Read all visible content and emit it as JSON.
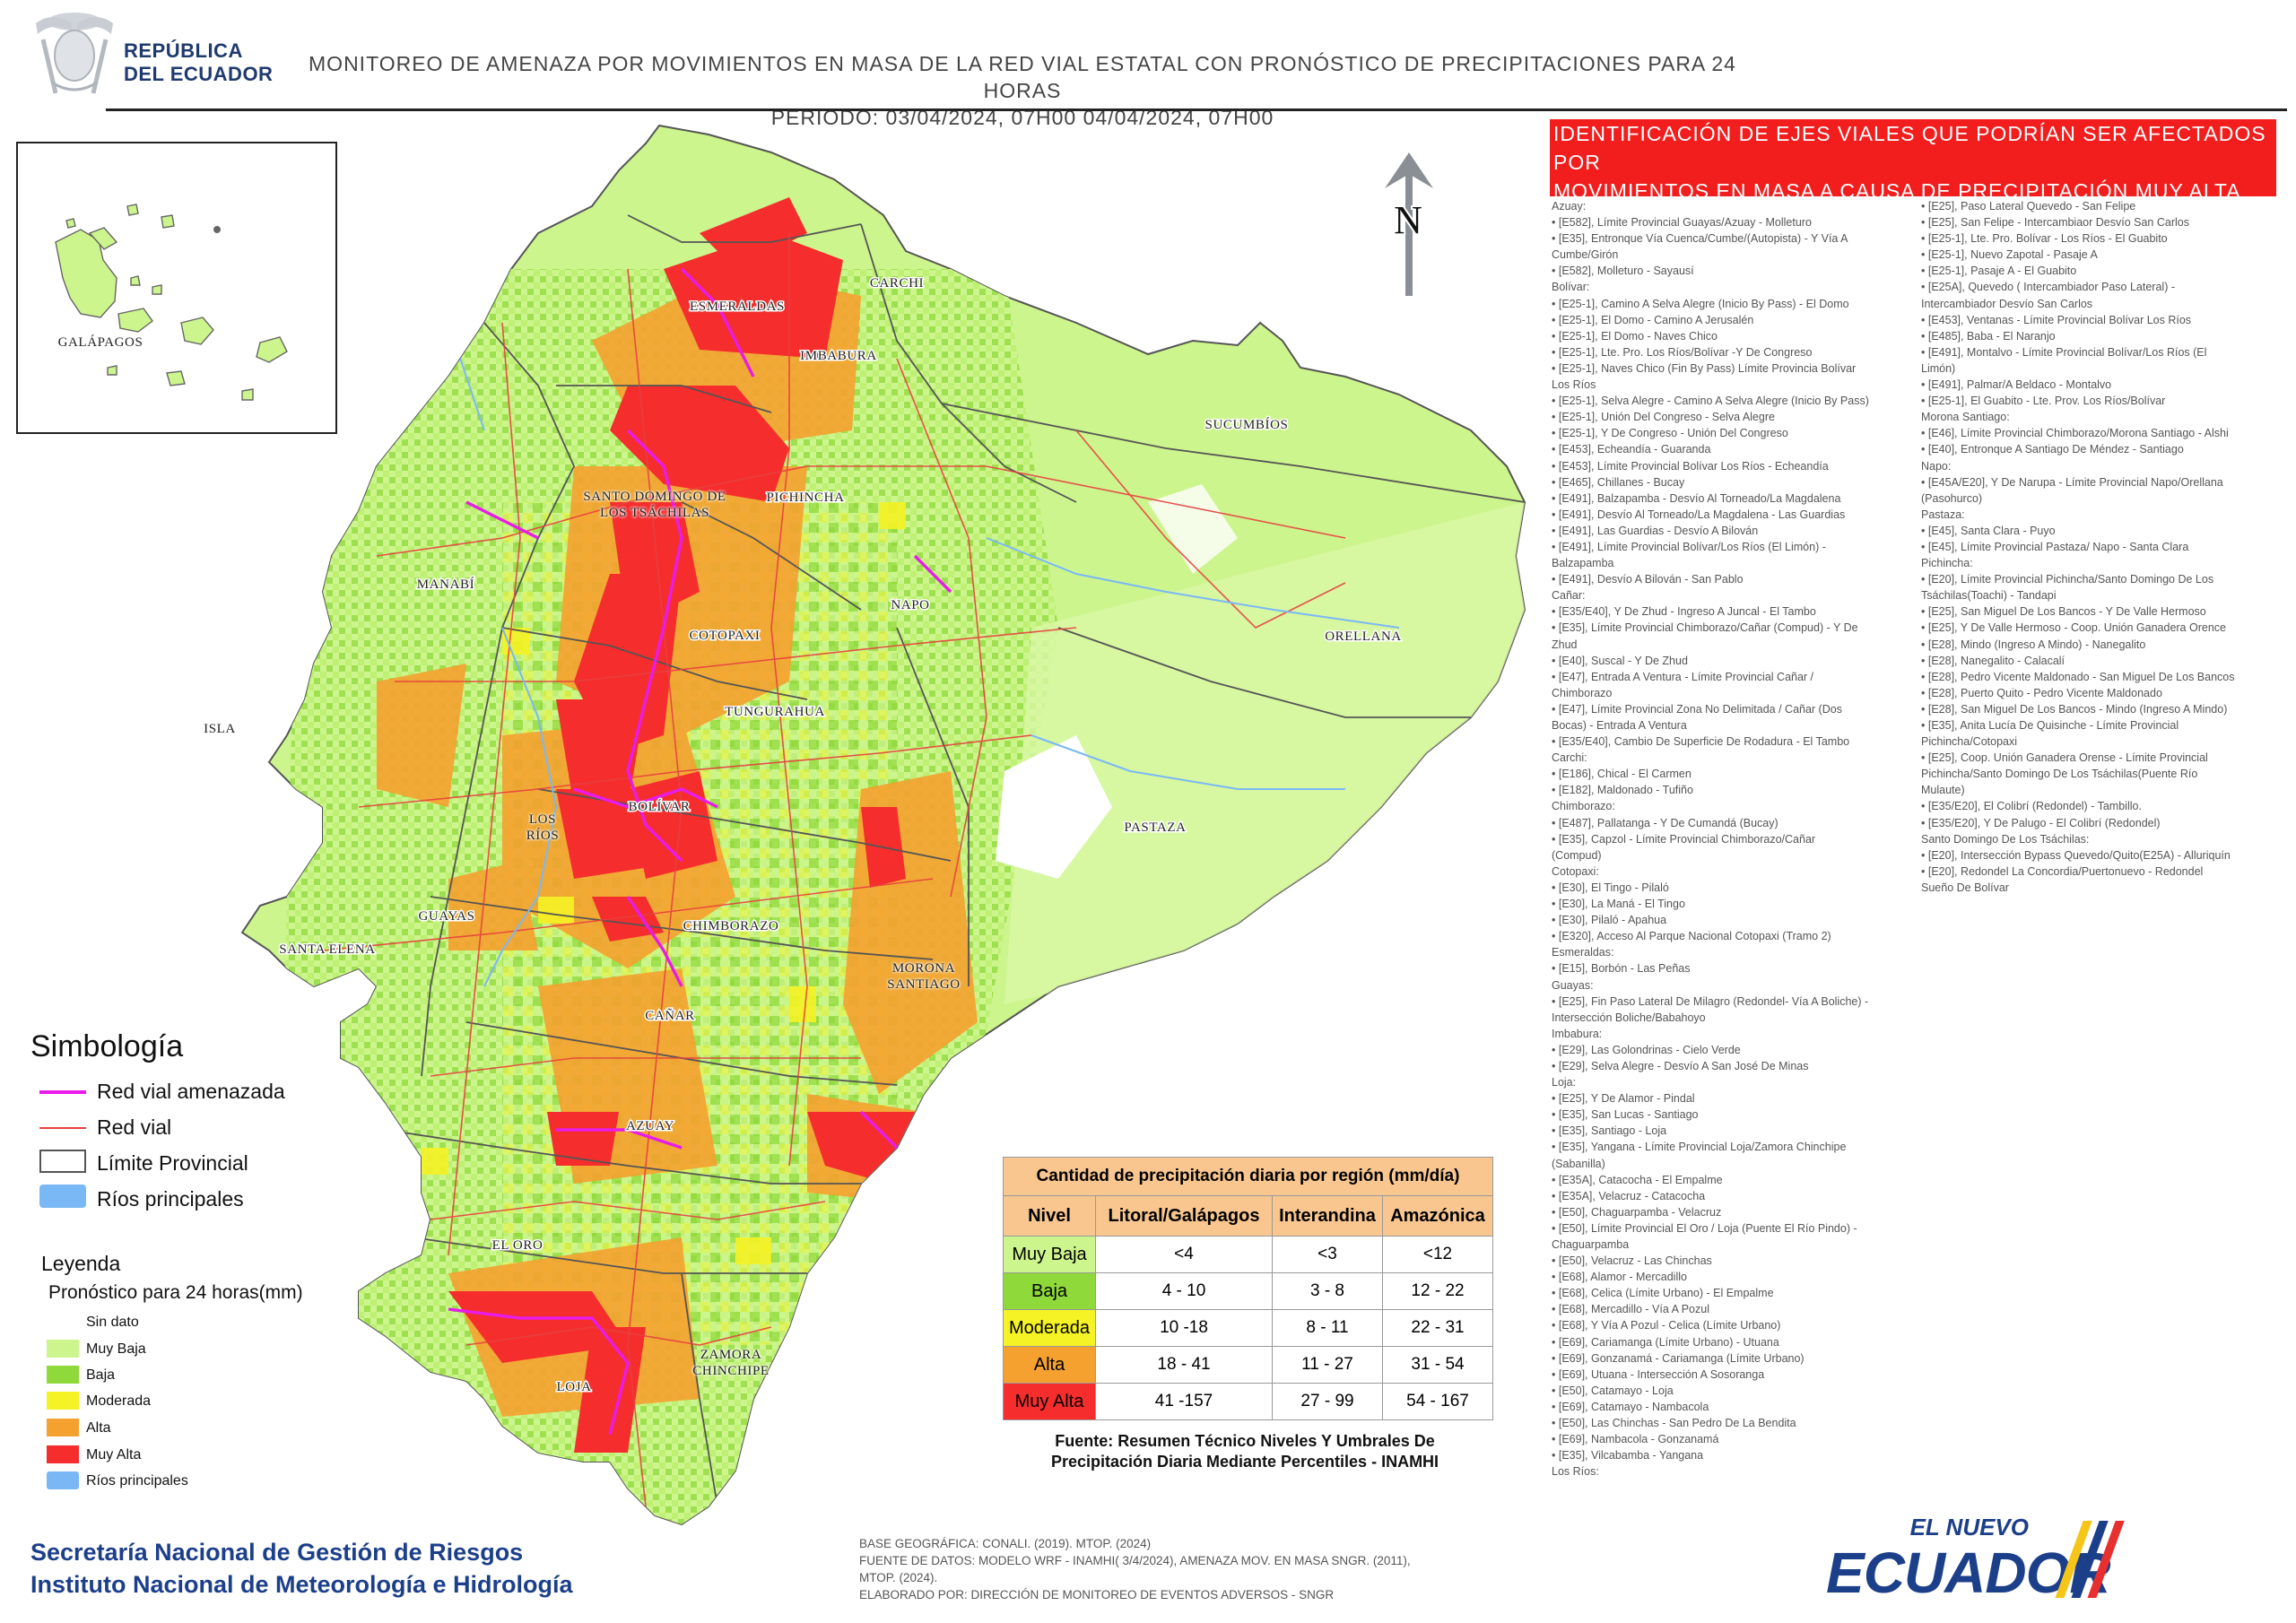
{
  "header": {
    "country_line1": "REPÚBLICA",
    "country_line2": "DEL ECUADOR",
    "title_line1": "MONITOREO DE AMENAZA POR MOVIMIENTOS EN MASA DE LA RED VIAL  ESTATAL  CON PRONÓSTICO  DE  PRECIPITACIONES PARA 24 HORAS",
    "title_line2": "PERIODO: 03/04/2024, 07H00 04/04/2024, 07H00"
  },
  "colors": {
    "muy_baja": "#cdf58d",
    "baja": "#8fd93a",
    "moderada": "#f5f225",
    "alta": "#f5a12f",
    "muy_alta": "#f52d2d",
    "rios": "#7ab8f5",
    "red_vial_amenazada": "#e81ce8",
    "red_vial": "#e84040",
    "header_box": "#f21d1d",
    "footer_blue": "#1c3f8a",
    "table_header": "#f8c68e"
  },
  "map": {
    "inset_label": "GALÁPAGOS",
    "north_label": "N",
    "province_labels": [
      "CARCHI",
      "ESMERALDAS",
      "IMBABURA",
      "SUCUMBÍOS",
      "SANTO DOMINGO DE LOS TSÁCHILAS",
      "PICHINCHA",
      "MANABÍ",
      "NAPO",
      "ORELLANA",
      "COTOPAXI",
      "TUNGURAHUA",
      "ISLA",
      "BOLÍVAR",
      "LOS RÍOS",
      "PASTAZA",
      "GUAYAS",
      "SANTA ELENA",
      "CHIMBORAZO",
      "MORONA SANTIAGO",
      "CAÑAR",
      "AZUAY",
      "EL ORO",
      "ZAMORA CHINCHIPE",
      "LOJA"
    ]
  },
  "road_list": {
    "title_line1": "IDENTIFICACIÓN DE EJES VIALES QUE PODRÍAN SER AFECTADOS POR",
    "title_line2": "MOVIMIENTOS EN MASA A CAUSA DE PRECIPITACIÓN MUY ALTA",
    "left_column": [
      "Azuay:",
      "• [E582], Límite Provincial Guayas/Azuay - Molleturo",
      "• [E35], Entronque Vía Cuenca/Cumbe/(Autopista) - Y Vía A",
      "Cumbe/Girón",
      "• [E582], Molleturo - Sayausí",
      "Bolívar:",
      "• [E25-1], Camino A Selva Alegre (Inicio By Pass) -  El Domo",
      "• [E25-1], El Domo - Camino A Jerusalén",
      "• [E25-1], El Domo - Naves Chico",
      "• [E25-1], Lte. Pro. Los Ríos/Bolívar -Y De Congreso",
      "• [E25-1], Naves Chico (Fin By Pass) Límite Provincia Bolívar",
      "Los Ríos",
      "• [E25-1], Selva Alegre - Camino A Selva Alegre (Inicio By Pass)",
      "• [E25-1], Unión Del Congreso - Selva  Alegre",
      "• [E25-1], Y De Congreso - Unión Del Congreso",
      "• [E453], Echeandía - Guaranda",
      "• [E453], Límite Provincial Bolívar Los Ríos - Echeandía",
      "• [E465], Chillanes - Bucay",
      "• [E491], Balzapamba - Desvío Al Torneado/La Magdalena",
      "• [E491], Desvío Al Torneado/La Magdalena - Las Guardias",
      "• [E491], Las Guardias - Desvío A Bilován",
      "• [E491], Límite Provincial Bolívar/Los Ríos (El Limón) -",
      "Balzapamba",
      "• [E491], Desvío A Bilován - San Pablo",
      "Cañar:",
      "• [E35/E40], Y De Zhud - Ingreso A Juncal - El Tambo",
      "• [E35], Límite Provincial Chimborazo/Cañar (Compud) - Y De",
      "Zhud",
      "• [E40], Suscal - Y De Zhud",
      "• [E47], Entrada A Ventura -  Límite Provincial Cañar /",
      "Chimborazo",
      "• [E47], Límite Provincial Zona No Delimitada / Cañar (Dos",
      "Bocas) - Entrada  A Ventura",
      "• [E35/E40], Cambio De Superficie De Rodadura - El Tambo",
      "Carchi:",
      "• [E186], Chical - El Carmen",
      "• [E182], Maldonado - Tufiño",
      "Chimborazo:",
      "• [E487], Pallatanga - Y De Cumandá (Bucay)",
      "• [E35], Capzol - Límite Provincial Chimborazo/Cañar",
      "(Compud)",
      "Cotopaxi:",
      "• [E30], El Tingo - Pilaló",
      "• [E30], La Maná - El Tingo",
      "• [E30], Pilaló - Apahua",
      "• [E320], Acceso Al Parque Nacional Cotopaxi (Tramo 2)",
      "Esmeraldas:",
      "• [E15], Borbón - Las Peñas",
      "Guayas:",
      "• [E25], Fin Paso Lateral De Milagro (Redondel- Vía A Boliche) -",
      "Intersección Boliche/Babahoyo",
      "Imbabura:",
      "• [E29], Las Golondrinas - Cielo Verde",
      "• [E29], Selva  Alegre - Desvío  A San José De Minas",
      "Loja:",
      "• [E25], Y De Alamor - Pindal",
      "• [E35], San Lucas - Santiago",
      "• [E35], Santiago - Loja",
      "• [E35], Yangana - Límite Provincial Loja/Zamora Chinchipe",
      "(Sabanilla)",
      "• [E35A], Catacocha - El Empalme",
      "• [E35A], Velacruz - Catacocha",
      "• [E50], Chaguarpamba - Velacruz",
      "• [E50], Límite Provincial El Oro / Loja (Puente El Río Pindo) -",
      "Chaguarpamba",
      "• [E50], Velacruz - Las Chinchas",
      "• [E68], Alamor - Mercadillo",
      "• [E68], Celica (Límite Urbano) - El Empalme",
      "• [E68], Mercadillo - Vía  A Pozul",
      "• [E68], Y Vía A Pozul - Celica (Límite Urbano)",
      "• [E69], Cariamanga (Límite Urbano) - Utuana",
      "• [E69], Gonzanamá - Cariamanga (Límite Urbano)",
      "• [E69], Utuana - Intersección A Sosoranga",
      "• [E50], Catamayo - Loja",
      "• [E69], Catamayo - Nambacola",
      "• [E50], Las Chinchas - San Pedro De La Bendita",
      "• [E69], Nambacola - Gonzanamá",
      "• [E35], Vilcabamba - Yangana",
      "Los Ríos:"
    ],
    "right_column": [
      "• [E25], Paso Lateral Quevedo - San Felipe",
      "• [E25], San Felipe  - Intercambiaor Desvío  San Carlos",
      "• [E25-1], Lte. Pro. Bolívar - Los Ríos - El Guabito",
      "• [E25-1], Nuevo Zapotal - Pasaje A",
      "• [E25-1], Pasaje A - El Guabito",
      "• [E25A], Quevedo ( Intercambiador Paso Lateral) -",
      "Intercambiador Desvío  San Carlos",
      "• [E453], Ventanas - Límite Provincial Bolívar Los Ríos",
      "• [E485], Baba - El Naranjo",
      "• [E491], Montalvo - Límite Provincial Bolívar/Los Ríos (El",
      "Limón)",
      "• [E491], Palmar/A Beldaco - Montalvo",
      "• [E25-1], El Guabito - Lte. Prov. Los Ríos/Bolívar",
      "Morona Santiago:",
      "• [E46], Límite Provincial Chimborazo/Morona Santiago - Alshi",
      "• [E40], Entronque A Santiago De Méndez - Santiago",
      "Napo:",
      "• [E45A/E20], Y De Narupa - Límite Provincial Napo/Orellana",
      "(Pasohurco)",
      "Pastaza:",
      "• [E45], Santa Clara - Puyo",
      "• [E45], Límite Provincial Pastaza/ Napo - Santa Clara",
      "Pichincha:",
      "• [E20], Límite Provincial Pichincha/Santo Domingo De Los",
      "Tsáchilas(Toachi) - Tandapi",
      "• [E25], San Miguel De Los Bancos - Y De Valle Hermoso",
      "• [E25], Y De Valle Hermoso - Coop. Unión Ganadera Orence",
      "• [E28], Mindo (Ingreso A Mindo) - Nanegalito",
      "• [E28], Nanegalito - Calacalí",
      "• [E28], Pedro Vicente Maldonado - San Miguel De Los Bancos",
      "• [E28], Puerto Quito - Pedro Vicente Maldonado",
      "• [E28], San Miguel De Los Bancos - Mindo (Ingreso A Mindo)",
      "• [E35], Anita Lucía De Quisinche - Límite Provincial",
      "Pichincha/Cotopaxi",
      "• [E25], Coop. Unión Ganadera Orense - Límite Provincial",
      "Pichincha/Santo Domingo De Los Tsáchilas(Puente Río",
      "Mulaute)",
      "• [E35/E20], El Colibrí (Redondel) - Tambillo.",
      "• [E35/E20], Y De Palugo - El Colibrí (Redondel)",
      "Santo Domingo De Los Tsáchilas:",
      "• [E20], Intersección Bypass Quevedo/Quito(E25A) - Alluriquín",
      "• [E20], Redondel La Concordia/Puertonuevo - Redondel",
      "Sueño De Bolívar"
    ]
  },
  "symbology": {
    "title": "Simbología",
    "items": [
      "Red vial amenazada",
      "Red vial",
      "Límite Provincial",
      "Ríos principales"
    ]
  },
  "legend": {
    "title": "Leyenda",
    "subtitle": "Pronóstico para 24 horas(mm)",
    "items": [
      "Sin dato",
      "Muy Baja",
      "Baja",
      "Moderada",
      "Alta",
      "Muy Alta",
      "Ríos principales"
    ]
  },
  "precip_table": {
    "title": "Cantidad de precipitación diaria por región (mm/día)",
    "headers": [
      "Nivel",
      "Litoral/Galápagos",
      "Interandina",
      "Amazónica"
    ],
    "rows": [
      {
        "nivel": "Muy Baja",
        "litoral": "<4",
        "interandina": "<3",
        "amazonica": "<12"
      },
      {
        "nivel": "Baja",
        "litoral": "4 - 10",
        "interandina": "3 - 8",
        "amazonica": "12 - 22"
      },
      {
        "nivel": "Moderada",
        "litoral": "10 -18",
        "interandina": "8 - 11",
        "amazonica": "22 - 31"
      },
      {
        "nivel": "Alta",
        "litoral": "18 - 41",
        "interandina": "11 - 27",
        "amazonica": "31 - 54"
      },
      {
        "nivel": "Muy Alta",
        "litoral": "41 -157",
        "interandina": "27 - 99",
        "amazonica": "54 - 167"
      }
    ],
    "source_line1": "Fuente: Resumen Técnico Niveles Y Umbrales De",
    "source_line2": "Precipitación Diaria Mediante Percentiles - INAMHI"
  },
  "footer": {
    "org1": "Secretaría Nacional de Gestión de Riesgos",
    "org2": "Instituto Nacional de Meteorología e Hidrología",
    "src1": "BASE GEOGRÁFICA: CONALI. (2019). MTOP. (2024)",
    "src2": "FUENTE DE DATOS: MODELO WRF - INAMHI( 3/4/2024),  AMENAZA MOV. EN MASA SNGR. (2011),",
    "src3": "MTOP. (2024).",
    "src4": "ELABORADO POR: DIRECCIÓN DE MONITOREO DE EVENTOS ADVERSOS - SNGR",
    "logo_top": "EL NUEVO",
    "logo_main": "ECUADOR"
  }
}
